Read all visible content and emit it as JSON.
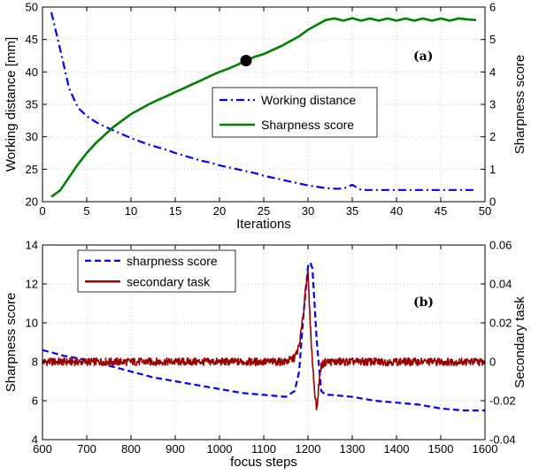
{
  "chart_data": [
    {
      "type": "line",
      "panel_label": "(a)",
      "xlabel": "Iterations",
      "ylabel": "Working distance [mm]",
      "ylabel_right": "Sharpness score",
      "xlim": [
        0,
        50
      ],
      "ylim": [
        20,
        50
      ],
      "ylim_right": [
        0,
        6
      ],
      "xticks": [
        0,
        5,
        10,
        15,
        20,
        25,
        30,
        35,
        40,
        45,
        50
      ],
      "yticks": [
        20,
        25,
        30,
        35,
        40,
        45,
        50
      ],
      "yticks_right": [
        0,
        1,
        2,
        3,
        4,
        5,
        6
      ],
      "grid": true,
      "legend_position": "center-right",
      "series": [
        {
          "name": "Working distance",
          "axis": "left",
          "style": "dash-dot",
          "color": "#0000ff",
          "x": [
            1,
            2,
            3,
            4,
            5,
            6,
            7,
            8,
            9,
            10,
            11,
            12,
            13,
            14,
            15,
            16,
            17,
            18,
            19,
            20,
            21,
            22,
            23,
            24,
            25,
            26,
            27,
            28,
            29,
            30,
            31,
            32,
            33,
            34,
            35,
            36,
            37,
            38,
            39,
            40,
            41,
            42,
            43,
            44,
            45,
            46,
            47,
            48,
            49
          ],
          "y": [
            49.2,
            43.5,
            37.5,
            34.5,
            33.2,
            32.3,
            31.6,
            31.0,
            30.4,
            29.8,
            29.3,
            28.8,
            28.4,
            28.0,
            27.5,
            27.1,
            26.7,
            26.3,
            26.0,
            25.6,
            25.3,
            25.0,
            24.7,
            24.4,
            24.0,
            23.7,
            23.4,
            23.1,
            22.8,
            22.5,
            22.3,
            22.1,
            22.0,
            22.0,
            22.6,
            21.8,
            21.8,
            21.8,
            21.8,
            21.8,
            21.8,
            21.8,
            21.8,
            21.8,
            21.8,
            21.8,
            21.8,
            21.8,
            21.8
          ]
        },
        {
          "name": "Sharpness score",
          "axis": "right",
          "style": "solid",
          "color": "#008000",
          "x": [
            1,
            2,
            3,
            4,
            5,
            6,
            7,
            8,
            9,
            10,
            11,
            12,
            13,
            14,
            15,
            16,
            17,
            18,
            19,
            20,
            21,
            22,
            23,
            24,
            25,
            26,
            27,
            28,
            29,
            30,
            31,
            32,
            33,
            34,
            35,
            36,
            37,
            38,
            39,
            40,
            41,
            42,
            43,
            44,
            45,
            46,
            47,
            48,
            49
          ],
          "y": [
            0.15,
            0.35,
            0.75,
            1.15,
            1.5,
            1.8,
            2.05,
            2.3,
            2.5,
            2.7,
            2.85,
            3.0,
            3.13,
            3.25,
            3.38,
            3.5,
            3.63,
            3.75,
            3.88,
            4.0,
            4.1,
            4.22,
            4.35,
            4.47,
            4.55,
            4.68,
            4.8,
            4.95,
            5.1,
            5.3,
            5.45,
            5.6,
            5.65,
            5.58,
            5.66,
            5.58,
            5.65,
            5.58,
            5.65,
            5.58,
            5.65,
            5.58,
            5.65,
            5.58,
            5.65,
            5.58,
            5.65,
            5.62,
            5.6
          ]
        }
      ],
      "annotations": [
        {
          "type": "marker",
          "x": 23,
          "y_right": 4.35,
          "color": "#000000"
        }
      ]
    },
    {
      "type": "line",
      "panel_label": "(b)",
      "xlabel": "focus steps",
      "ylabel": "Sharpness score",
      "ylabel_right": "Secondary task",
      "xlim": [
        600,
        1600
      ],
      "ylim": [
        4,
        14
      ],
      "ylim_right": [
        -0.04,
        0.06
      ],
      "xticks": [
        600,
        700,
        800,
        900,
        1000,
        1100,
        1200,
        1300,
        1400,
        1500,
        1600
      ],
      "yticks": [
        4,
        6,
        8,
        10,
        12,
        14
      ],
      "yticks_right": [
        -0.04,
        -0.02,
        0,
        0.02,
        0.04,
        0.06
      ],
      "grid": true,
      "legend_position": "top-left",
      "series": [
        {
          "name": "sharpness score",
          "axis": "left",
          "style": "dashed",
          "color": "#0000ff",
          "x": [
            600,
            650,
            700,
            750,
            800,
            850,
            900,
            950,
            1000,
            1050,
            1100,
            1150,
            1170,
            1180,
            1190,
            1200,
            1205,
            1210,
            1220,
            1230,
            1240,
            1250,
            1300,
            1350,
            1400,
            1450,
            1500,
            1550,
            1600
          ],
          "y": [
            8.6,
            8.3,
            8.1,
            7.8,
            7.5,
            7.2,
            7.0,
            6.8,
            6.6,
            6.4,
            6.3,
            6.2,
            6.5,
            7.5,
            10.5,
            12.9,
            13.1,
            12.8,
            9.0,
            6.5,
            6.3,
            6.3,
            6.2,
            6.0,
            5.9,
            5.8,
            5.6,
            5.5,
            5.5
          ]
        },
        {
          "name": "secondary task",
          "axis": "right",
          "style": "solid",
          "color": "#990000",
          "noise_amplitude": 0.002,
          "x": [
            600,
            1100,
            1150,
            1170,
            1180,
            1190,
            1195,
            1200,
            1205,
            1210,
            1215,
            1220,
            1225,
            1230,
            1240,
            1260,
            1300,
            1600
          ],
          "y": [
            0,
            0,
            0,
            0.002,
            0.008,
            0.025,
            0.04,
            0.045,
            0.02,
            0.0,
            -0.015,
            -0.025,
            -0.01,
            -0.002,
            0,
            0,
            0,
            0
          ]
        }
      ]
    }
  ]
}
